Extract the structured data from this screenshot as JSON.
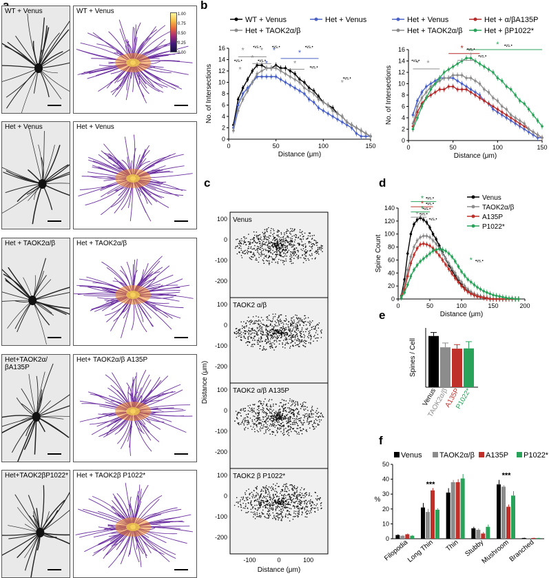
{
  "panel_letters": {
    "a": "a",
    "b": "b",
    "c": "c",
    "d": "d",
    "e": "e",
    "f": "f"
  },
  "panel_a": {
    "rows": [
      {
        "left": "WT + Venus",
        "right": "WT + Venus"
      },
      {
        "left": "Het + Venus",
        "right": "Het + Venus"
      },
      {
        "left": "Het + TAOK2α/β",
        "right": "Het + TAOK2α/β"
      },
      {
        "left": "Het+TAOK2α/βA135P",
        "right": "Het+ TAOK2α/β A135P"
      },
      {
        "left": "Het+TAOK2βP1022*",
        "right": "Het + TAOK2β P1022*"
      }
    ],
    "colorbar_ticks": [
      "1.00",
      "0.75",
      "0.50",
      "0.25",
      "0.00"
    ],
    "heat_color": "#6b2fa0",
    "hot_color": "#f08a2a"
  },
  "chart_data": [
    {
      "id": "b-left",
      "type": "line",
      "xlabel": "Distance (μm)",
      "ylabel": "No. of Intersections",
      "xlim": [
        0,
        150
      ],
      "ylim": [
        0,
        16
      ],
      "xticks": [
        0,
        50,
        100,
        150
      ],
      "yticks": [
        0,
        2,
        4,
        6,
        8,
        10,
        12,
        14,
        16
      ],
      "x": [
        5,
        10,
        15,
        20,
        25,
        30,
        35,
        40,
        45,
        50,
        55,
        60,
        65,
        70,
        75,
        80,
        85,
        90,
        95,
        100,
        105,
        110,
        115,
        120,
        125,
        130,
        135,
        140,
        145,
        150
      ],
      "series": [
        {
          "name": "WT + Venus",
          "color": "#000000",
          "values": [
            2.5,
            7,
            9,
            10.5,
            12,
            13,
            13,
            12.5,
            12.5,
            13,
            12.5,
            12.5,
            12,
            11.5,
            10.5,
            10,
            9,
            8.5,
            7.5,
            6.5,
            6,
            5.5,
            4.5,
            4,
            3,
            2.5,
            2,
            1.5,
            1,
            0.5
          ]
        },
        {
          "name": "Het + Venus",
          "color": "#4a62c8",
          "values": [
            2,
            6,
            8,
            9,
            10,
            11,
            11,
            11,
            11,
            11,
            10.5,
            10,
            9.5,
            9,
            8.5,
            8,
            7,
            6.5,
            5.5,
            5,
            4.5,
            4,
            3.5,
            3,
            2.5,
            2,
            1,
            0.5,
            0.5,
            0.5
          ]
        },
        {
          "name": "Het + TAOK2α/β",
          "color": "#8c8c8c",
          "values": [
            1.5,
            5,
            7,
            8.5,
            10,
            11.5,
            12,
            12.5,
            12.5,
            12.5,
            12,
            11.5,
            11,
            10.5,
            10,
            9,
            8.5,
            8,
            7,
            6.5,
            6,
            5,
            4.5,
            4,
            3,
            2.5,
            2,
            1.5,
            1,
            0.5
          ]
        }
      ],
      "annotations": [
        "*",
        "*",
        "*",
        "*",
        "*",
        "*",
        "*",
        "*",
        "*"
      ],
      "vs_labels": [
        "•vs.•",
        "•vs.•",
        "•vs.•",
        "•vs.•",
        "•vs.•",
        "•vs.•",
        "•vs.•"
      ]
    },
    {
      "id": "b-right",
      "type": "line",
      "xlabel": "Distance (μm)",
      "ylabel": "No. of Intersections",
      "xlim": [
        0,
        150
      ],
      "ylim": [
        0,
        16
      ],
      "xticks": [
        0,
        50,
        100,
        150
      ],
      "yticks": [
        0,
        2,
        4,
        6,
        8,
        10,
        12,
        14,
        16
      ],
      "x": [
        5,
        10,
        15,
        20,
        25,
        30,
        35,
        40,
        45,
        50,
        55,
        60,
        65,
        70,
        75,
        80,
        85,
        90,
        95,
        100,
        105,
        110,
        115,
        120,
        125,
        130,
        135,
        140,
        145,
        150
      ],
      "series": [
        {
          "name": "Het + Venus",
          "color": "#4a62c8",
          "values": [
            4.5,
            7,
            8.5,
            9.5,
            10,
            10.5,
            11,
            11,
            11,
            11,
            10.5,
            10,
            9.5,
            9,
            8.5,
            8,
            7,
            6.5,
            5.5,
            5,
            4.5,
            4,
            3.5,
            3,
            2.5,
            2,
            1.5,
            1,
            0.5,
            0.5
          ]
        },
        {
          "name": "Het + α/βA135P",
          "color": "#b52a2a",
          "values": [
            2.5,
            5,
            6.5,
            7.5,
            8,
            8.5,
            9,
            9,
            9.5,
            9.5,
            9,
            9,
            9,
            8.5,
            8,
            7.5,
            7,
            6.5,
            6,
            5.5,
            5,
            4.5,
            4,
            3.5,
            3,
            2.5,
            2,
            1.5,
            1,
            0.5
          ]
        },
        {
          "name": "Het + TAOK2α/β",
          "color": "#8c8c8c",
          "values": [
            3,
            6,
            7.5,
            8.5,
            9.5,
            10,
            10.5,
            11,
            11,
            11.5,
            11.5,
            11.5,
            11,
            11,
            10.5,
            10,
            9,
            8.5,
            7.5,
            7,
            6,
            5.5,
            4.5,
            4,
            3.5,
            3,
            2,
            1.5,
            1,
            0.5
          ]
        },
        {
          "name": "Het + βP1022*",
          "color": "#2aa35a",
          "values": [
            2,
            4,
            6,
            7.5,
            9,
            10,
            11,
            12,
            12.5,
            13,
            13.5,
            14,
            14.5,
            14.5,
            14,
            13.5,
            13,
            12.5,
            12,
            11,
            10.5,
            9.5,
            9,
            8,
            7,
            6.5,
            5.5,
            4.5,
            3.5,
            2.5
          ]
        }
      ],
      "annotations": [
        "*",
        "*",
        "*",
        "*",
        "*",
        "*",
        "*",
        "*"
      ],
      "vs_labels": [
        "•vs.•",
        "•vs.•",
        "•vs.•",
        "•vs.•",
        "•vs.•"
      ]
    },
    {
      "id": "d",
      "type": "line",
      "xlabel": "Distance (μm)",
      "ylabel": "Spine Count",
      "xlim": [
        0,
        200
      ],
      "ylim": [
        0,
        140
      ],
      "xticks": [
        0,
        50,
        100,
        150,
        200
      ],
      "yticks": [
        0,
        20,
        40,
        60,
        80,
        100,
        120,
        140
      ],
      "x": [
        5,
        10,
        15,
        20,
        25,
        30,
        35,
        40,
        45,
        50,
        55,
        60,
        65,
        70,
        75,
        80,
        85,
        90,
        95,
        100,
        105,
        110,
        115,
        120,
        125,
        130,
        135,
        140,
        145,
        150,
        155,
        160,
        165,
        170,
        175,
        180,
        185,
        190
      ],
      "series": [
        {
          "name": "Venus",
          "color": "#000000",
          "values": [
            5,
            30,
            70,
            100,
            115,
            122,
            125,
            122,
            118,
            110,
            100,
            92,
            82,
            72,
            62,
            52,
            44,
            36,
            28,
            22,
            16,
            12,
            9,
            6,
            4,
            3,
            2,
            1,
            0,
            0,
            0,
            0,
            0,
            0,
            0,
            0,
            0,
            0
          ]
        },
        {
          "name": "TAOK2α/β",
          "color": "#8c8c8c",
          "values": [
            4,
            20,
            45,
            65,
            80,
            90,
            95,
            97,
            97,
            95,
            90,
            85,
            78,
            70,
            62,
            55,
            47,
            40,
            32,
            26,
            20,
            15,
            11,
            8,
            6,
            4,
            3,
            2,
            1,
            0,
            0,
            0,
            0,
            0,
            0,
            0,
            0,
            0
          ]
        },
        {
          "name": "A135P",
          "color": "#c0302a",
          "values": [
            3,
            15,
            35,
            55,
            68,
            78,
            84,
            85,
            84,
            82,
            78,
            73,
            67,
            60,
            53,
            46,
            39,
            32,
            26,
            20,
            15,
            11,
            8,
            6,
            4,
            3,
            2,
            1,
            0,
            0,
            0,
            0,
            0,
            0,
            0,
            0,
            0,
            0
          ]
        },
        {
          "name": "P1022*",
          "color": "#2aa35a",
          "values": [
            2,
            10,
            22,
            35,
            45,
            52,
            58,
            62,
            66,
            70,
            74,
            76,
            77,
            76,
            74,
            70,
            65,
            58,
            50,
            42,
            36,
            30,
            26,
            22,
            18,
            15,
            12,
            10,
            8,
            6,
            5,
            4,
            3,
            2,
            1,
            1,
            0,
            0
          ]
        }
      ],
      "legend": [
        "Venus",
        "TAOK2α/β",
        "A135P",
        "P1022*"
      ],
      "annotations": [
        "*",
        "*",
        "*",
        "*",
        "*"
      ],
      "vs_labels": [
        "•vs.•",
        "•vs.•",
        "•vs.•",
        "•vs.•",
        "•vs.•",
        "•vs.•"
      ]
    },
    {
      "id": "e",
      "type": "bar",
      "ylabel": "Spines / Cell",
      "categories": [
        "Venus",
        "TAOK2α/β",
        "A135P",
        "P1022*"
      ],
      "category_colors": [
        "#000000",
        "#8c8c8c",
        "#c0302a",
        "#2aa35a"
      ],
      "values": [
        1900,
        1480,
        1430,
        1440
      ],
      "errors": [
        130,
        160,
        150,
        250
      ],
      "ylim": [
        0,
        2200
      ]
    },
    {
      "id": "f",
      "type": "bar",
      "ylabel": "%",
      "ylim": [
        0,
        50
      ],
      "yticks": [
        0,
        10,
        20,
        30,
        40,
        50
      ],
      "categories": [
        "Filopodia",
        "Long Thin",
        "Thin",
        "Stubby",
        "Mushroom",
        "Branched"
      ],
      "series": [
        {
          "name": "Venus",
          "color": "#000000",
          "values": [
            2.5,
            21,
            31,
            7,
            36.5,
            0.5
          ],
          "errors": [
            0.5,
            3,
            3,
            1,
            3,
            0.2
          ]
        },
        {
          "name": "TAOK2α/β",
          "color": "#8c8c8c",
          "values": [
            2,
            18,
            38,
            6,
            35,
            0.3
          ],
          "errors": [
            0.5,
            2,
            1.5,
            1,
            1,
            0.2
          ]
        },
        {
          "name": "A135P",
          "color": "#c0302a",
          "values": [
            3,
            32.5,
            38,
            3.5,
            21.5,
            0.5
          ],
          "errors": [
            0.5,
            1.5,
            2,
            1,
            1.5,
            0.2
          ]
        },
        {
          "name": "P1022*",
          "color": "#2aa35a",
          "values": [
            2,
            19.5,
            40.5,
            8,
            29,
            0.5
          ],
          "errors": [
            0.5,
            1,
            3,
            1.5,
            3,
            0.2
          ]
        }
      ],
      "annotations": [
        "***",
        "***"
      ]
    }
  ],
  "panel_c": {
    "ylabel": "Distance (μm)",
    "xlabel": "Distance (μm)",
    "plots": [
      "Venus",
      "TAOK2 α/β",
      "TAOK2 α/β A135P",
      "TAOK2 β P1022*"
    ],
    "yticks": [
      "100",
      "0",
      "-100",
      "-200"
    ],
    "xticks": [
      "-100",
      "0",
      "100"
    ]
  }
}
